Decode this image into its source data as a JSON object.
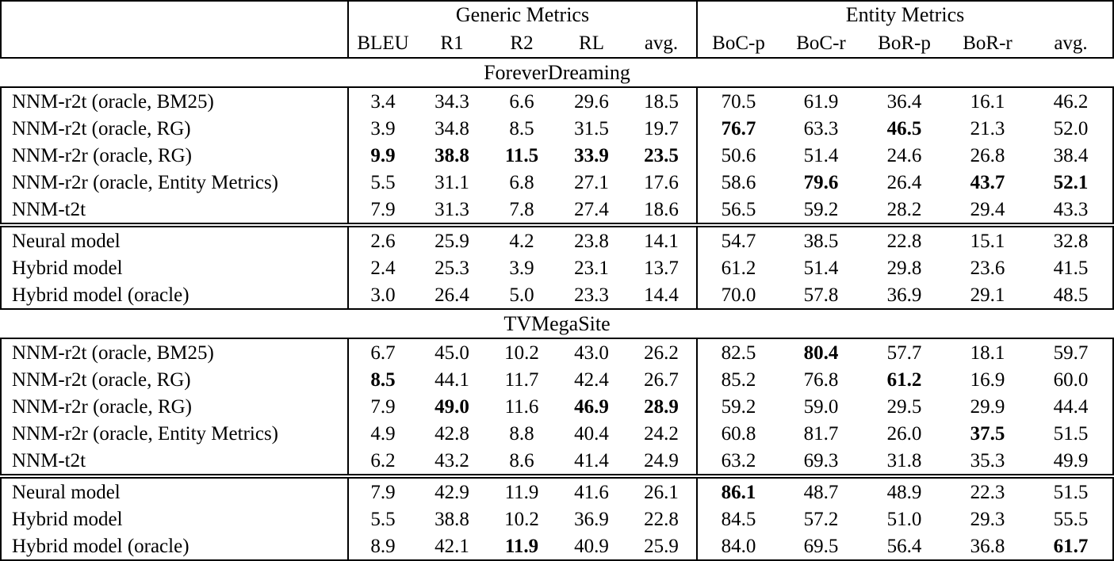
{
  "table": {
    "header": {
      "groups": [
        {
          "label": "Generic Metrics",
          "span": 5
        },
        {
          "label": "Entity Metrics",
          "span": 5
        }
      ],
      "columns": [
        "BLEU",
        "R1",
        "R2",
        "RL",
        "avg.",
        "BoC-p",
        "BoC-r",
        "BoR-p",
        "BoR-r",
        "avg."
      ]
    },
    "sections": [
      {
        "title": "ForeverDreaming",
        "groups": [
          {
            "rows": [
              {
                "label": "NNM-r2t (oracle, BM25)",
                "values": [
                  "3.4",
                  "34.3",
                  "6.6",
                  "29.6",
                  "18.5",
                  "70.5",
                  "61.9",
                  "36.4",
                  "16.1",
                  "46.2"
                ],
                "bold": []
              },
              {
                "label": "NNM-r2t (oracle, RG)",
                "values": [
                  "3.9",
                  "34.8",
                  "8.5",
                  "31.5",
                  "19.7",
                  "76.7",
                  "63.3",
                  "46.5",
                  "21.3",
                  "52.0"
                ],
                "bold": [
                  5,
                  7
                ]
              },
              {
                "label": "NNM-r2r (oracle, RG)",
                "values": [
                  "9.9",
                  "38.8",
                  "11.5",
                  "33.9",
                  "23.5",
                  "50.6",
                  "51.4",
                  "24.6",
                  "26.8",
                  "38.4"
                ],
                "bold": [
                  0,
                  1,
                  2,
                  3,
                  4
                ]
              },
              {
                "label": "NNM-r2r (oracle, Entity Metrics)",
                "values": [
                  "5.5",
                  "31.1",
                  "6.8",
                  "27.1",
                  "17.6",
                  "58.6",
                  "79.6",
                  "26.4",
                  "43.7",
                  "52.1"
                ],
                "bold": [
                  6,
                  8,
                  9
                ]
              },
              {
                "label": "NNM-t2t",
                "values": [
                  "7.9",
                  "31.3",
                  "7.8",
                  "27.4",
                  "18.6",
                  "56.5",
                  "59.2",
                  "28.2",
                  "29.4",
                  "43.3"
                ],
                "bold": []
              }
            ]
          },
          {
            "rows": [
              {
                "label": "Neural model",
                "values": [
                  "2.6",
                  "25.9",
                  "4.2",
                  "23.8",
                  "14.1",
                  "54.7",
                  "38.5",
                  "22.8",
                  "15.1",
                  "32.8"
                ],
                "bold": []
              },
              {
                "label": "Hybrid model",
                "values": [
                  "2.4",
                  "25.3",
                  "3.9",
                  "23.1",
                  "13.7",
                  "61.2",
                  "51.4",
                  "29.8",
                  "23.6",
                  "41.5"
                ],
                "bold": []
              },
              {
                "label": "Hybrid model (oracle)",
                "values": [
                  "3.0",
                  "26.4",
                  "5.0",
                  "23.3",
                  "14.4",
                  "70.0",
                  "57.8",
                  "36.9",
                  "29.1",
                  "48.5"
                ],
                "bold": []
              }
            ]
          }
        ]
      },
      {
        "title": "TVMegaSite",
        "groups": [
          {
            "rows": [
              {
                "label": "NNM-r2t (oracle, BM25)",
                "values": [
                  "6.7",
                  "45.0",
                  "10.2",
                  "43.0",
                  "26.2",
                  "82.5",
                  "80.4",
                  "57.7",
                  "18.1",
                  "59.7"
                ],
                "bold": [
                  6
                ]
              },
              {
                "label": "NNM-r2t (oracle, RG)",
                "values": [
                  "8.5",
                  "44.1",
                  "11.7",
                  "42.4",
                  "26.7",
                  "85.2",
                  "76.8",
                  "61.2",
                  "16.9",
                  "60.0"
                ],
                "bold": [
                  0,
                  7
                ]
              },
              {
                "label": "NNM-r2r (oracle, RG)",
                "values": [
                  "7.9",
                  "49.0",
                  "11.6",
                  "46.9",
                  "28.9",
                  "59.2",
                  "59.0",
                  "29.5",
                  "29.9",
                  "44.4"
                ],
                "bold": [
                  1,
                  3,
                  4
                ]
              },
              {
                "label": "NNM-r2r (oracle, Entity Metrics)",
                "values": [
                  "4.9",
                  "42.8",
                  "8.8",
                  "40.4",
                  "24.2",
                  "60.8",
                  "81.7",
                  "26.0",
                  "37.5",
                  "51.5"
                ],
                "bold": [
                  8
                ]
              },
              {
                "label": "NNM-t2t",
                "values": [
                  "6.2",
                  "43.2",
                  "8.6",
                  "41.4",
                  "24.9",
                  "63.2",
                  "69.3",
                  "31.8",
                  "35.3",
                  "49.9"
                ],
                "bold": []
              }
            ]
          },
          {
            "rows": [
              {
                "label": "Neural model",
                "values": [
                  "7.9",
                  "42.9",
                  "11.9",
                  "41.6",
                  "26.1",
                  "86.1",
                  "48.7",
                  "48.9",
                  "22.3",
                  "51.5"
                ],
                "bold": [
                  5
                ]
              },
              {
                "label": "Hybrid model",
                "values": [
                  "5.5",
                  "38.8",
                  "10.2",
                  "36.9",
                  "22.8",
                  "84.5",
                  "57.2",
                  "51.0",
                  "29.3",
                  "55.5"
                ],
                "bold": []
              },
              {
                "label": "Hybrid model (oracle)",
                "values": [
                  "8.9",
                  "42.1",
                  "11.9",
                  "40.9",
                  "25.9",
                  "84.0",
                  "69.5",
                  "56.4",
                  "36.8",
                  "61.7"
                ],
                "bold": [
                  2,
                  9
                ]
              }
            ]
          }
        ]
      }
    ]
  }
}
